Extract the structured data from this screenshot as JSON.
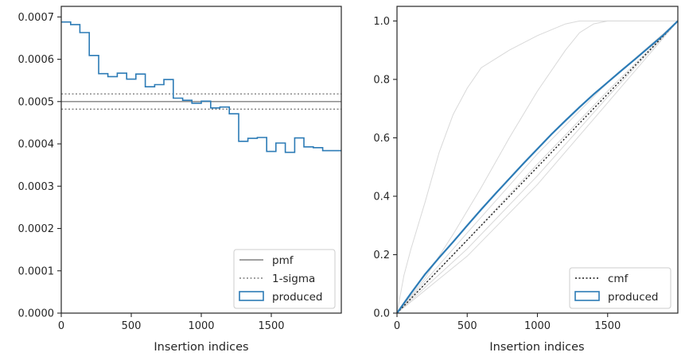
{
  "chart_data": [
    {
      "type": "step",
      "xlabel": "Insertion indices",
      "ylabel": "",
      "xlim": [
        0,
        2000
      ],
      "ylim": [
        0,
        0.000725
      ],
      "xticks": [
        0,
        500,
        1000,
        1500
      ],
      "xtick_labels": [
        "0",
        "500",
        "1000",
        "1500"
      ],
      "yticks": [
        0,
        0.0001,
        0.0002,
        0.0003,
        0.0004,
        0.0005,
        0.0006,
        0.0007
      ],
      "ytick_labels": [
        "0.0000",
        "0.0001",
        "0.0002",
        "0.0003",
        "0.0004",
        "0.0005",
        "0.0006",
        "0.0007"
      ],
      "legend_position": "bottom-right",
      "legend": [
        "pmf",
        "1-sigma",
        "produced"
      ],
      "pmf": 0.0005,
      "sigma_band": [
        0.000482,
        0.000518
      ],
      "colors": {
        "produced": "#2c7bb6",
        "pmf": "#808080",
        "sigma": "#808080"
      },
      "series": [
        {
          "name": "produced",
          "bin_edges": [
            0,
            67,
            133,
            200,
            267,
            333,
            400,
            467,
            533,
            600,
            667,
            733,
            800,
            867,
            933,
            1000,
            1067,
            1133,
            1200,
            1267,
            1333,
            1400,
            1467,
            1533,
            1600,
            1667,
            1733,
            1800,
            1867,
            1933,
            2000
          ],
          "values": [
            0.000688,
            0.000682,
            0.000663,
            0.000609,
            0.000566,
            0.000559,
            0.000567,
            0.000553,
            0.000565,
            0.000535,
            0.00054,
            0.000552,
            0.000508,
            0.000503,
            0.000496,
            0.000501,
            0.000485,
            0.000487,
            0.000471,
            0.000406,
            0.000413,
            0.000415,
            0.000382,
            0.000402,
            0.00038,
            0.000414,
            0.000393,
            0.000391,
            0.000384,
            0.000384
          ]
        }
      ]
    },
    {
      "type": "line",
      "xlabel": "Insertion indices",
      "ylabel": "",
      "xlim": [
        0,
        2000
      ],
      "ylim": [
        0,
        1.05
      ],
      "xticks": [
        0,
        500,
        1000,
        1500
      ],
      "xtick_labels": [
        "0",
        "500",
        "1000",
        "1500"
      ],
      "yticks": [
        0,
        0.2,
        0.4,
        0.6,
        0.8,
        1.0
      ],
      "ytick_labels": [
        "0.0",
        "0.2",
        "0.4",
        "0.6",
        "0.8",
        "1.0"
      ],
      "legend_position": "bottom-right",
      "legend": [
        "cmf",
        "produced"
      ],
      "colors": {
        "produced": "#2c7bb6",
        "cmf": "#1a1a1a",
        "background": "#d9d9d9"
      },
      "series": [
        {
          "name": "produced",
          "x": [
            0,
            100,
            200,
            300,
            400,
            500,
            600,
            700,
            800,
            900,
            1000,
            1100,
            1200,
            1300,
            1400,
            1500,
            1600,
            1700,
            1800,
            1900,
            2000
          ],
          "y": [
            0,
            0.068,
            0.133,
            0.19,
            0.244,
            0.3,
            0.355,
            0.408,
            0.46,
            0.512,
            0.562,
            0.612,
            0.659,
            0.705,
            0.749,
            0.79,
            0.831,
            0.871,
            0.912,
            0.953,
            1.0
          ]
        },
        {
          "name": "cmf",
          "x": [
            0,
            2000
          ],
          "y": [
            0,
            1.0
          ]
        }
      ],
      "background_curves": [
        {
          "x": [
            0,
            50,
            100,
            200,
            300,
            400,
            500,
            600,
            800,
            1000,
            1200,
            1300,
            1400,
            2000
          ],
          "y": [
            0,
            0.13,
            0.22,
            0.38,
            0.55,
            0.68,
            0.77,
            0.84,
            0.9,
            0.95,
            0.99,
            1.0,
            1.0,
            1.0
          ]
        },
        {
          "x": [
            0,
            200,
            400,
            600,
            800,
            1000,
            1200,
            1300,
            1400,
            1500,
            2000
          ],
          "y": [
            0,
            0.12,
            0.27,
            0.43,
            0.6,
            0.76,
            0.9,
            0.96,
            0.99,
            1.0,
            1.0
          ]
        },
        {
          "x": [
            0,
            500,
            1000,
            1500,
            2000
          ],
          "y": [
            0,
            0.275,
            0.545,
            0.79,
            1.0
          ]
        },
        {
          "x": [
            0,
            500,
            1000,
            1500,
            2000
          ],
          "y": [
            0,
            0.22,
            0.47,
            0.74,
            1.0
          ]
        },
        {
          "x": [
            0,
            500,
            1000,
            1500,
            2000
          ],
          "y": [
            0,
            0.195,
            0.44,
            0.72,
            1.0
          ]
        },
        {
          "x": [
            0,
            500,
            1000,
            1500,
            2000
          ],
          "y": [
            0,
            0.25,
            0.51,
            0.76,
            1.0
          ]
        }
      ]
    }
  ]
}
